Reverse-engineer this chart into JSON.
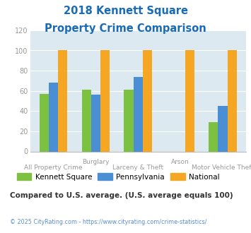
{
  "title_line1": "2018 Kennett Square",
  "title_line2": "Property Crime Comparison",
  "categories": [
    "All Property Crime",
    "Burglary",
    "Larceny & Theft",
    "Arson",
    "Motor Vehicle Theft"
  ],
  "top_labels": [
    "",
    "Burglary",
    "",
    "Arson",
    ""
  ],
  "bottom_labels": [
    "All Property Crime",
    "",
    "Larceny & Theft",
    "",
    "Motor Vehicle Theft"
  ],
  "kennett_square": [
    57,
    61,
    61,
    0,
    29
  ],
  "pennsylvania": [
    68,
    56,
    74,
    0,
    45
  ],
  "national": [
    100,
    100,
    100,
    100,
    100
  ],
  "bar_colors": {
    "kennett_square": "#7dc142",
    "pennsylvania": "#4a8fd4",
    "national": "#f5a623"
  },
  "ylim": [
    0,
    120
  ],
  "yticks": [
    0,
    20,
    40,
    60,
    80,
    100,
    120
  ],
  "legend_labels": [
    "Kennett Square",
    "Pennsylvania",
    "National"
  ],
  "note": "Compared to U.S. average. (U.S. average equals 100)",
  "footer": "© 2025 CityRating.com - https://www.cityrating.com/crime-statistics/",
  "title_color": "#1a6bb5",
  "title_bg": "#ffffff",
  "plot_bg_color": "#dce9f0",
  "bottom_bg": "#ffffff",
  "footer_color": "#5b8fc9",
  "note_color": "#333333",
  "tick_color": "#999999",
  "label_color": "#999999"
}
